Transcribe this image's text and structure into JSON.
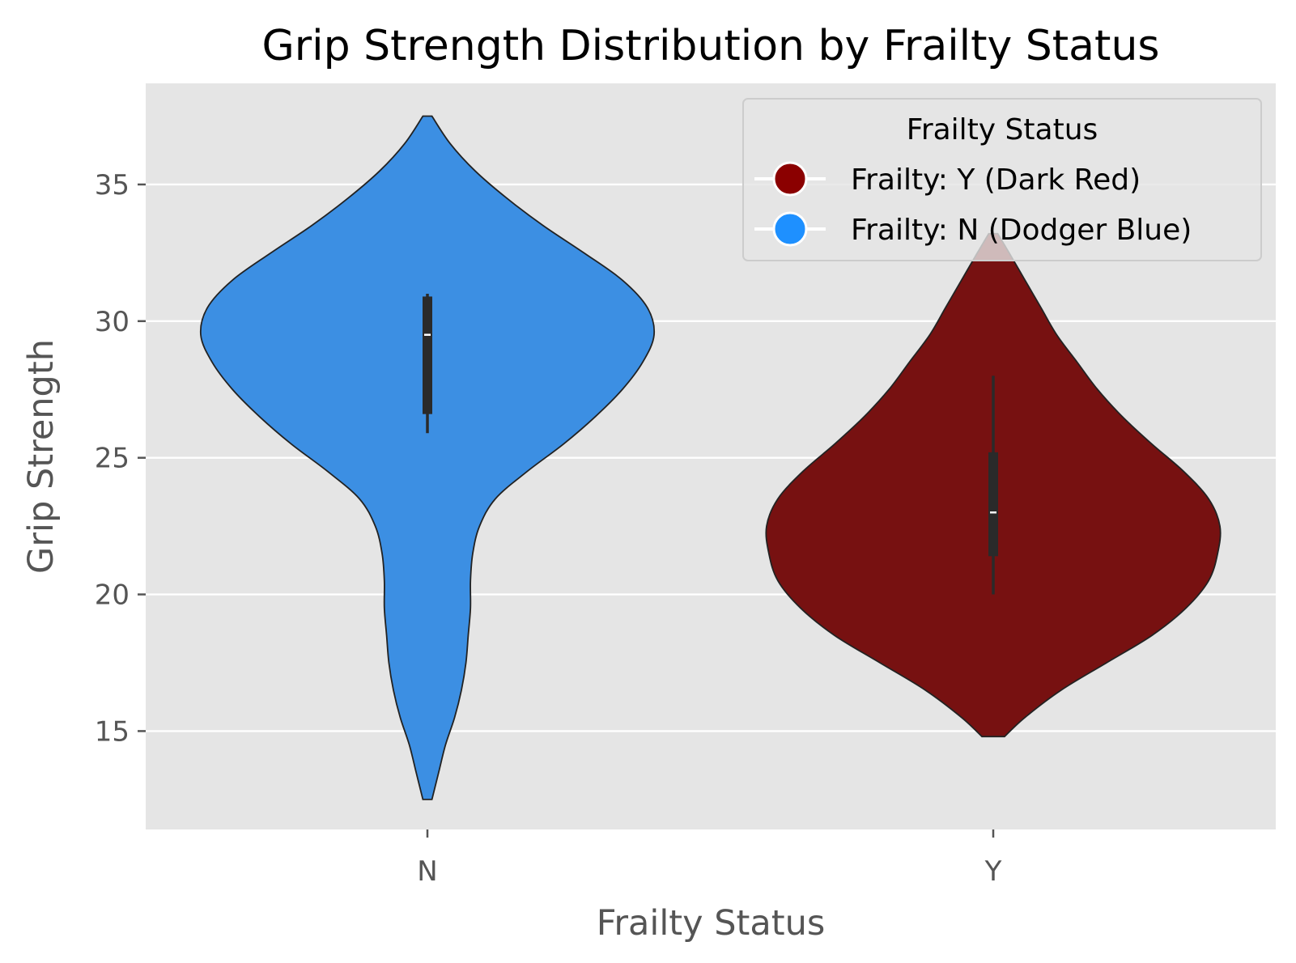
{
  "chart_data": {
    "type": "violin",
    "title": "Grip Strength Distribution by Frailty Status",
    "xlabel": "Frailty Status",
    "ylabel": "Grip Strength",
    "categories": [
      "N",
      "Y"
    ],
    "ylim": [
      11.4,
      38.7
    ],
    "yticks": [
      15,
      20,
      25,
      30,
      35
    ],
    "grid": true,
    "legend": {
      "title": "Frailty Status",
      "position": "top-right",
      "entries": [
        {
          "label": "Frailty: Y (Dark Red)",
          "color": "#8b0000"
        },
        {
          "label": "Frailty: N (Dodger Blue)",
          "color": "#1e90ff"
        }
      ]
    },
    "series": [
      {
        "category": "N",
        "color": "#3c8fe3",
        "min": 12.5,
        "max": 37.5,
        "q1": 26.6,
        "median": 29.5,
        "q3": 30.9,
        "whisker_low": 25.9,
        "whisker_high": 31.0,
        "density": [
          [
            12.5,
            0.02
          ],
          [
            13.5,
            0.05
          ],
          [
            14.5,
            0.08
          ],
          [
            15.5,
            0.12
          ],
          [
            16.5,
            0.15
          ],
          [
            17.5,
            0.17
          ],
          [
            18.5,
            0.18
          ],
          [
            19.5,
            0.19
          ],
          [
            20.5,
            0.19
          ],
          [
            21.5,
            0.2
          ],
          [
            22.5,
            0.23
          ],
          [
            23.5,
            0.3
          ],
          [
            24.5,
            0.44
          ],
          [
            25.5,
            0.6
          ],
          [
            26.5,
            0.74
          ],
          [
            27.5,
            0.86
          ],
          [
            28.5,
            0.95
          ],
          [
            29.5,
            1.0
          ],
          [
            30.5,
            0.97
          ],
          [
            31.5,
            0.86
          ],
          [
            32.5,
            0.69
          ],
          [
            33.5,
            0.51
          ],
          [
            34.5,
            0.35
          ],
          [
            35.5,
            0.21
          ],
          [
            36.5,
            0.1
          ],
          [
            37.5,
            0.02
          ]
        ]
      },
      {
        "category": "Y",
        "color": "#771111",
        "min": 14.8,
        "max": 33.2,
        "q1": 21.4,
        "median": 23.0,
        "q3": 25.2,
        "whisker_low": 20.0,
        "whisker_high": 28.0,
        "density": [
          [
            14.8,
            0.05
          ],
          [
            15.5,
            0.14
          ],
          [
            16.5,
            0.3
          ],
          [
            17.5,
            0.5
          ],
          [
            18.5,
            0.7
          ],
          [
            19.5,
            0.85
          ],
          [
            20.5,
            0.95
          ],
          [
            21.5,
            0.99
          ],
          [
            22.5,
            1.0
          ],
          [
            23.5,
            0.95
          ],
          [
            24.5,
            0.84
          ],
          [
            25.5,
            0.7
          ],
          [
            26.5,
            0.57
          ],
          [
            27.5,
            0.46
          ],
          [
            28.5,
            0.37
          ],
          [
            29.5,
            0.28
          ],
          [
            30.5,
            0.21
          ],
          [
            31.5,
            0.14
          ],
          [
            32.5,
            0.07
          ],
          [
            33.2,
            0.02
          ]
        ]
      }
    ]
  }
}
